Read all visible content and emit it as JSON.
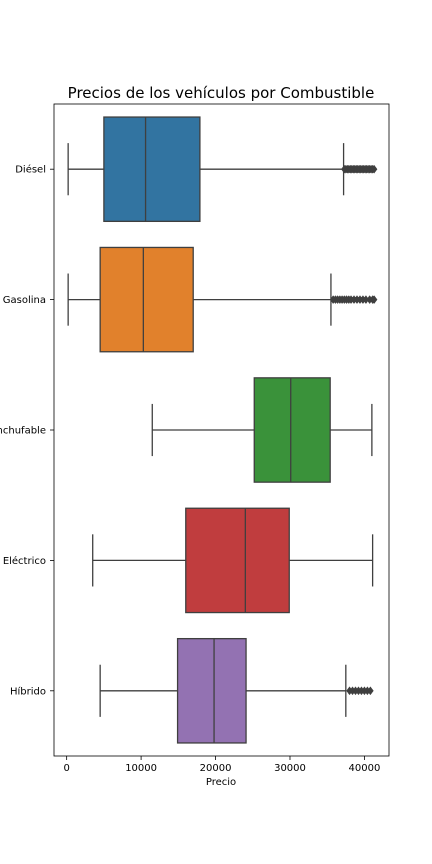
{
  "chart_data": {
    "type": "boxplot",
    "orientation": "horizontal",
    "title": "Precios de los vehículos por Combustible",
    "xlabel": "Precio",
    "ylabel": "",
    "xlim": [
      -1700,
      43300
    ],
    "xticks": [
      0,
      10000,
      20000,
      30000,
      40000
    ],
    "grid": false,
    "categories": [
      "Diésel",
      "Gasolina",
      "Híbrido Enchufable",
      "Eléctrico",
      "Híbrido"
    ],
    "category_labels_shown": [
      "Diésel",
      "Gasolina",
      "nchufable",
      "Eléctrico",
      "Híbrido"
    ],
    "series": [
      {
        "category": "Diésel",
        "color": "#3274a1",
        "whisker_low": 200,
        "q1": 5000,
        "median": 10600,
        "q3": 17900,
        "whisker_high": 37200,
        "outliers": [
          37300,
          37500,
          37700,
          37900,
          38100,
          38300,
          38500,
          38700,
          38900,
          39100,
          39300,
          39500,
          39700,
          39900,
          40100,
          40300,
          40500,
          40700,
          40900,
          41100,
          41300
        ]
      },
      {
        "category": "Gasolina",
        "color": "#e1812c",
        "whisker_low": 200,
        "q1": 4500,
        "median": 10300,
        "q3": 17000,
        "whisker_high": 35500,
        "outliers": [
          35800,
          36100,
          36400,
          36700,
          37000,
          37300,
          37600,
          37900,
          38200,
          38600,
          39000,
          39400,
          39800,
          40200,
          40700,
          41100,
          41300
        ]
      },
      {
        "category": "Híbrido Enchufable",
        "color": "#3a923a",
        "whisker_low": 11500,
        "q1": 25200,
        "median": 30100,
        "q3": 35400,
        "whisker_high": 41000,
        "outliers": []
      },
      {
        "category": "Eléctrico",
        "color": "#c03d3e",
        "whisker_low": 3500,
        "q1": 16000,
        "median": 24000,
        "q3": 29900,
        "whisker_high": 41100,
        "outliers": []
      },
      {
        "category": "Híbrido",
        "color": "#9372b2",
        "whisker_low": 4500,
        "q1": 14900,
        "median": 19800,
        "q3": 24100,
        "whisker_high": 37500,
        "outliers": [
          38000,
          38400,
          38800,
          39200,
          39600,
          40000,
          40400,
          40800
        ]
      }
    ]
  }
}
